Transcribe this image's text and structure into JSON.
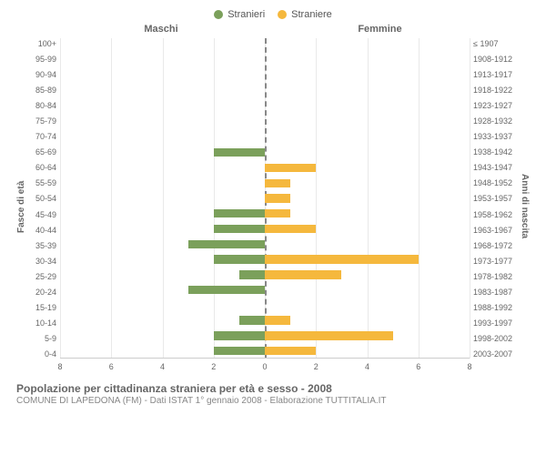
{
  "legend": {
    "male": {
      "label": "Stranieri",
      "color": "#7ba05b"
    },
    "female": {
      "label": "Straniere",
      "color": "#f5b83d"
    }
  },
  "side_titles": {
    "left": "Maschi",
    "right": "Femmine"
  },
  "axis_labels": {
    "left": "Fasce di età",
    "right": "Anni di nascita"
  },
  "ages": [
    "100+",
    "95-99",
    "90-94",
    "85-89",
    "80-84",
    "75-79",
    "70-74",
    "65-69",
    "60-64",
    "55-59",
    "50-54",
    "45-49",
    "40-44",
    "35-39",
    "30-34",
    "25-29",
    "20-24",
    "15-19",
    "10-14",
    "5-9",
    "0-4"
  ],
  "cohorts": [
    "≤ 1907",
    "1908-1912",
    "1913-1917",
    "1918-1922",
    "1923-1927",
    "1928-1932",
    "1933-1937",
    "1938-1942",
    "1943-1947",
    "1948-1952",
    "1953-1957",
    "1958-1962",
    "1963-1967",
    "1968-1972",
    "1973-1977",
    "1978-1982",
    "1983-1987",
    "1988-1992",
    "1993-1997",
    "1998-2002",
    "2003-2007"
  ],
  "xmax": 8,
  "xticks": [
    8,
    6,
    4,
    2,
    0,
    2,
    4,
    6,
    8
  ],
  "grid_color": "#e9e9e9",
  "background_color": "#ffffff",
  "bars": {
    "100+": {
      "m": 0,
      "f": 0
    },
    "95-99": {
      "m": 0,
      "f": 0
    },
    "90-94": {
      "m": 0,
      "f": 0
    },
    "85-89": {
      "m": 0,
      "f": 0
    },
    "80-84": {
      "m": 0,
      "f": 0
    },
    "75-79": {
      "m": 0,
      "f": 0
    },
    "70-74": {
      "m": 0,
      "f": 0
    },
    "65-69": {
      "m": 2,
      "f": 0
    },
    "60-64": {
      "m": 0,
      "f": 2
    },
    "55-59": {
      "m": 0,
      "f": 1
    },
    "50-54": {
      "m": 0,
      "f": 1
    },
    "45-49": {
      "m": 2,
      "f": 1
    },
    "40-44": {
      "m": 2,
      "f": 2
    },
    "35-39": {
      "m": 3,
      "f": 0
    },
    "30-34": {
      "m": 2,
      "f": 6
    },
    "25-29": {
      "m": 1,
      "f": 3
    },
    "20-24": {
      "m": 3,
      "f": 0
    },
    "15-19": {
      "m": 0,
      "f": 0
    },
    "10-14": {
      "m": 1,
      "f": 1
    },
    "5-9": {
      "m": 2,
      "f": 5
    },
    "0-4": {
      "m": 2,
      "f": 2
    }
  },
  "caption": "Popolazione per cittadinanza straniera per età e sesso - 2008",
  "subcaption": "COMUNE DI LAPEDONA (FM) - Dati ISTAT 1° gennaio 2008 - Elaborazione TUTTITALIA.IT"
}
